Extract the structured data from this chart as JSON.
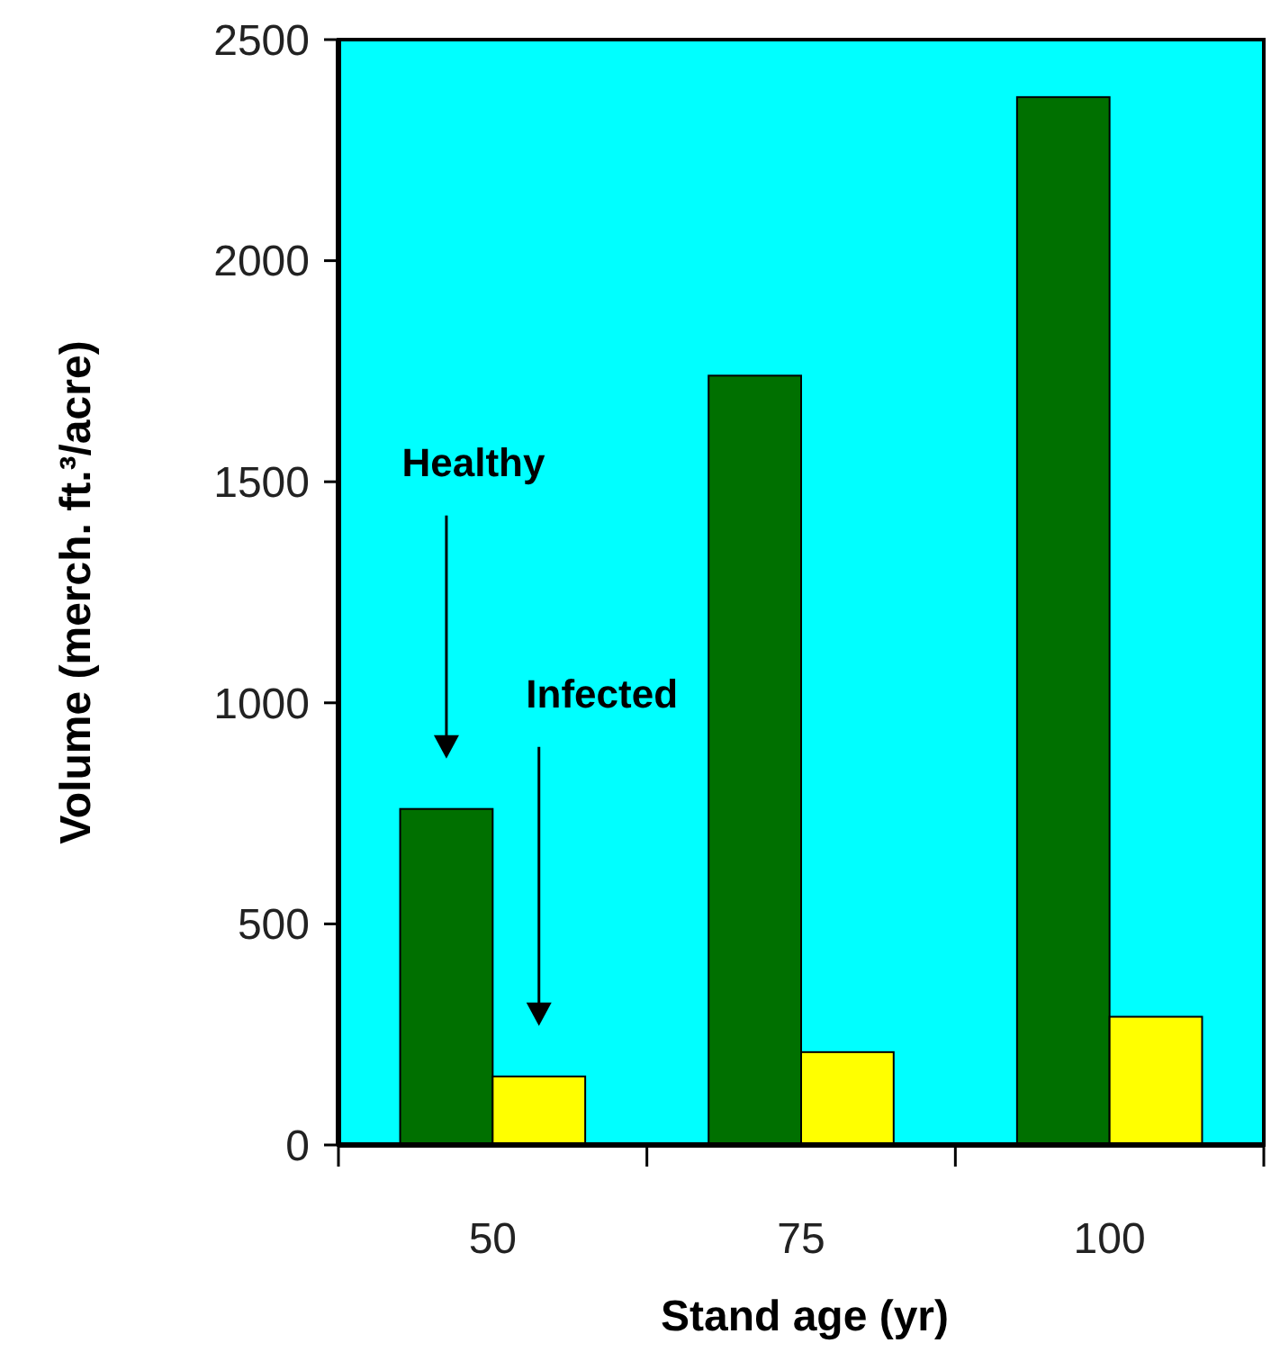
{
  "chart_data": {
    "type": "bar",
    "xlabel": "Stand age (yr)",
    "ylabel": "Volume (merch. ft.³/acre)",
    "categories": [
      "50",
      "75",
      "100"
    ],
    "series": [
      {
        "color": "#007000",
        "values": [
          760,
          1740,
          2370
        ]
      },
      {
        "color": "#ffff00",
        "values": [
          155,
          210,
          290
        ]
      }
    ],
    "annotations": [
      "Healthy",
      "Infected"
    ],
    "ylim": [
      0,
      2500
    ],
    "yticks": [
      0,
      500,
      1000,
      1500,
      2000,
      2500
    ],
    "grid": false
  }
}
